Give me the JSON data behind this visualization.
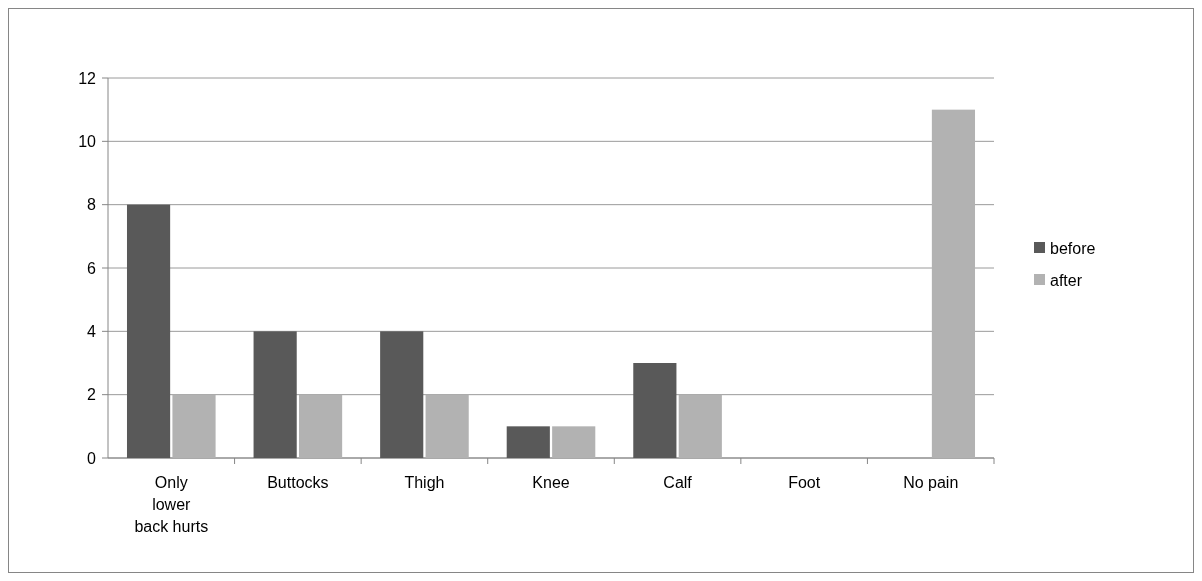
{
  "chart_data": {
    "type": "bar",
    "categories": [
      "Only lower back hurts",
      "Buttocks",
      "Thigh",
      "Knee",
      "Calf",
      "Foot",
      "No pain"
    ],
    "series": [
      {
        "name": "before",
        "color": "#595959",
        "values": [
          8,
          4,
          4,
          1,
          3,
          0,
          0
        ]
      },
      {
        "name": "after",
        "color": "#b2b2b2",
        "values": [
          2,
          2,
          2,
          1,
          2,
          0,
          11
        ]
      }
    ],
    "ylim": [
      0,
      12
    ],
    "yticks": [
      0,
      2,
      4,
      6,
      8,
      10,
      12
    ],
    "grid": "y",
    "legend": "right"
  }
}
